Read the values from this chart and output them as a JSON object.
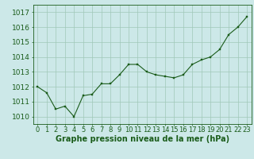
{
  "x": [
    0,
    1,
    2,
    3,
    4,
    5,
    6,
    7,
    8,
    9,
    10,
    11,
    12,
    13,
    14,
    15,
    16,
    17,
    18,
    19,
    20,
    21,
    22,
    23
  ],
  "y": [
    1012.0,
    1011.6,
    1010.5,
    1010.7,
    1010.0,
    1011.4,
    1011.5,
    1012.2,
    1012.2,
    1012.8,
    1013.5,
    1013.5,
    1013.0,
    1012.8,
    1012.7,
    1012.6,
    1012.8,
    1013.5,
    1013.8,
    1014.0,
    1014.5,
    1015.5,
    1016.0,
    1016.7
  ],
  "ylim": [
    1009.5,
    1017.5
  ],
  "yticks": [
    1010,
    1011,
    1012,
    1013,
    1014,
    1015,
    1016,
    1017
  ],
  "xticks": [
    0,
    1,
    2,
    3,
    4,
    5,
    6,
    7,
    8,
    9,
    10,
    11,
    12,
    13,
    14,
    15,
    16,
    17,
    18,
    19,
    20,
    21,
    22,
    23
  ],
  "xlabel": "Graphe pression niveau de la mer (hPa)",
  "line_color": "#1a5c1a",
  "marker_color": "#1a5c1a",
  "bg_color": "#cce8e8",
  "grid_color": "#a0c8b8",
  "tick_label_color": "#1a5c1a",
  "xlabel_color": "#1a5c1a",
  "xlabel_fontsize": 7.0,
  "tick_fontsize": 6.0,
  "ytick_fontsize": 6.5
}
